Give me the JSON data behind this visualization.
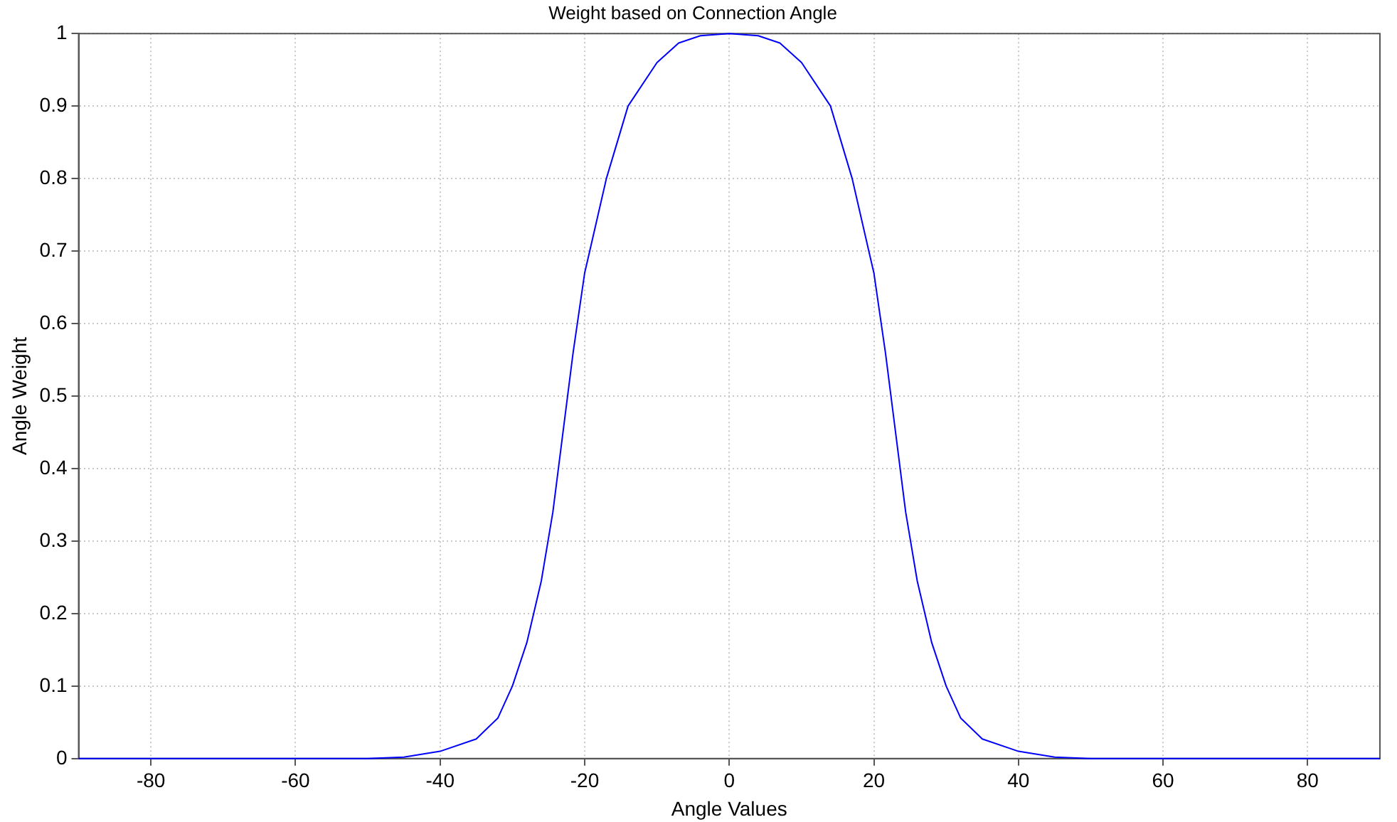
{
  "chart_data": {
    "type": "line",
    "title": "Weight based on Connection Angle",
    "xlabel": "Angle Values",
    "ylabel": "Angle Weight",
    "series": [
      {
        "color": "#0000ff",
        "x": [
          -90,
          -60,
          -50,
          -45,
          -40,
          -35,
          -32,
          -30,
          -28,
          -26,
          -24.4,
          -23,
          -21.6,
          -20,
          -19.3,
          -17,
          -14,
          -10,
          -7,
          -4,
          0,
          4,
          7,
          10,
          14,
          17,
          19.3,
          20,
          21.6,
          23,
          24.4,
          26,
          28,
          30,
          32,
          35,
          40,
          45,
          50,
          60,
          90
        ],
        "values": [
          0,
          0,
          0,
          0.002,
          0.01,
          0.027,
          0.056,
          0.1,
          0.16,
          0.245,
          0.34,
          0.45,
          0.56,
          0.67,
          0.7,
          0.8,
          0.9,
          0.96,
          0.987,
          0.997,
          1,
          0.997,
          0.987,
          0.96,
          0.9,
          0.8,
          0.7,
          0.67,
          0.56,
          0.45,
          0.34,
          0.245,
          0.16,
          0.1,
          0.056,
          0.027,
          0.01,
          0.002,
          0,
          0,
          0
        ]
      }
    ],
    "xlim": [
      -90,
      90
    ],
    "xticks": [
      -80,
      -60,
      -40,
      -20,
      0,
      20,
      40,
      60,
      80
    ],
    "ylim": [
      0,
      1
    ],
    "yticks": [
      0,
      0.1,
      0.2,
      0.3,
      0.4,
      0.5,
      0.6,
      0.7,
      0.8,
      0.9,
      1
    ],
    "grid": true,
    "legend": false,
    "marker": "none",
    "line_style": "solid"
  }
}
